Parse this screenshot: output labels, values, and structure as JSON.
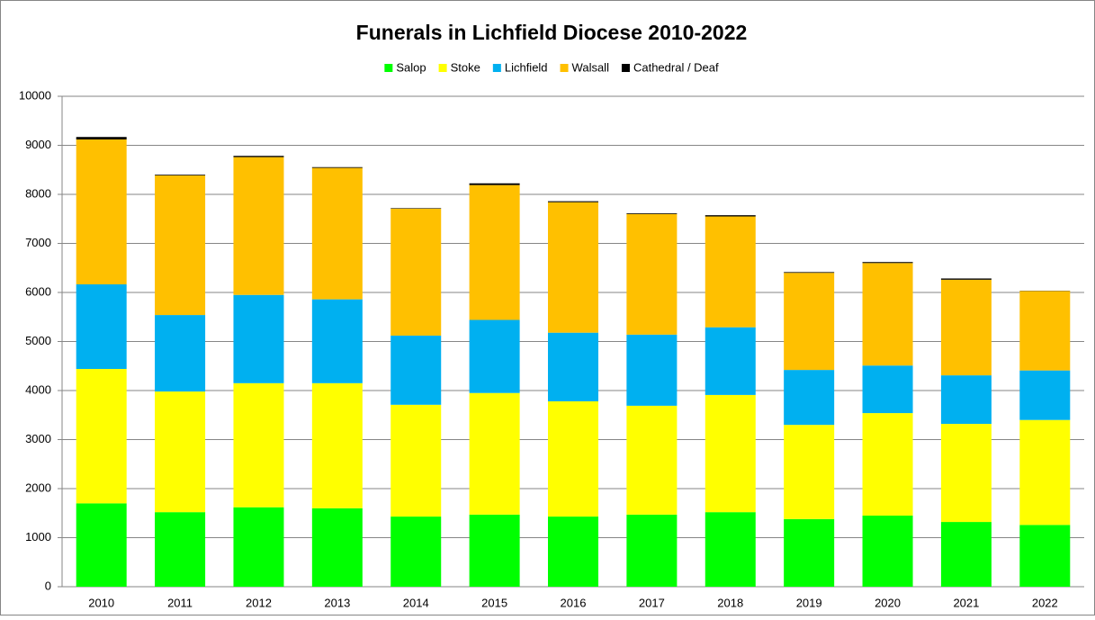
{
  "chart_data": {
    "type": "stacked_bar",
    "title": "Funerals in Lichfield Diocese 2010-2022",
    "categories": [
      "2010",
      "2011",
      "2012",
      "2013",
      "2014",
      "2015",
      "2016",
      "2017",
      "2018",
      "2019",
      "2020",
      "2021",
      "2022"
    ],
    "series": [
      {
        "name": "Salop",
        "color": "#00ff00",
        "values": [
          1700,
          1520,
          1620,
          1600,
          1430,
          1470,
          1430,
          1470,
          1520,
          1380,
          1450,
          1320,
          1260
        ]
      },
      {
        "name": "Stoke",
        "color": "#ffff00",
        "values": [
          2740,
          2460,
          2530,
          2550,
          2280,
          2480,
          2350,
          2220,
          2390,
          1920,
          2090,
          2000,
          2140
        ]
      },
      {
        "name": "Lichfield",
        "color": "#00b0f0",
        "values": [
          1725,
          1560,
          1800,
          1710,
          1410,
          1490,
          1400,
          1450,
          1380,
          1120,
          970,
          990,
          1010
        ]
      },
      {
        "name": "Walsall",
        "color": "#ffc000",
        "values": [
          2955,
          2845,
          2810,
          2680,
          2590,
          2750,
          2660,
          2460,
          2260,
          1980,
          2090,
          1950,
          1620
        ]
      },
      {
        "name": "Cathedral / Deaf",
        "color": "#000000",
        "values": [
          50,
          15,
          25,
          15,
          10,
          35,
          20,
          15,
          25,
          15,
          20,
          25,
          5
        ]
      }
    ],
    "ylim": [
      0,
      10000
    ],
    "yticks": [
      0,
      1000,
      2000,
      3000,
      4000,
      5000,
      6000,
      7000,
      8000,
      9000,
      10000
    ],
    "grid": true,
    "legend": "top"
  }
}
